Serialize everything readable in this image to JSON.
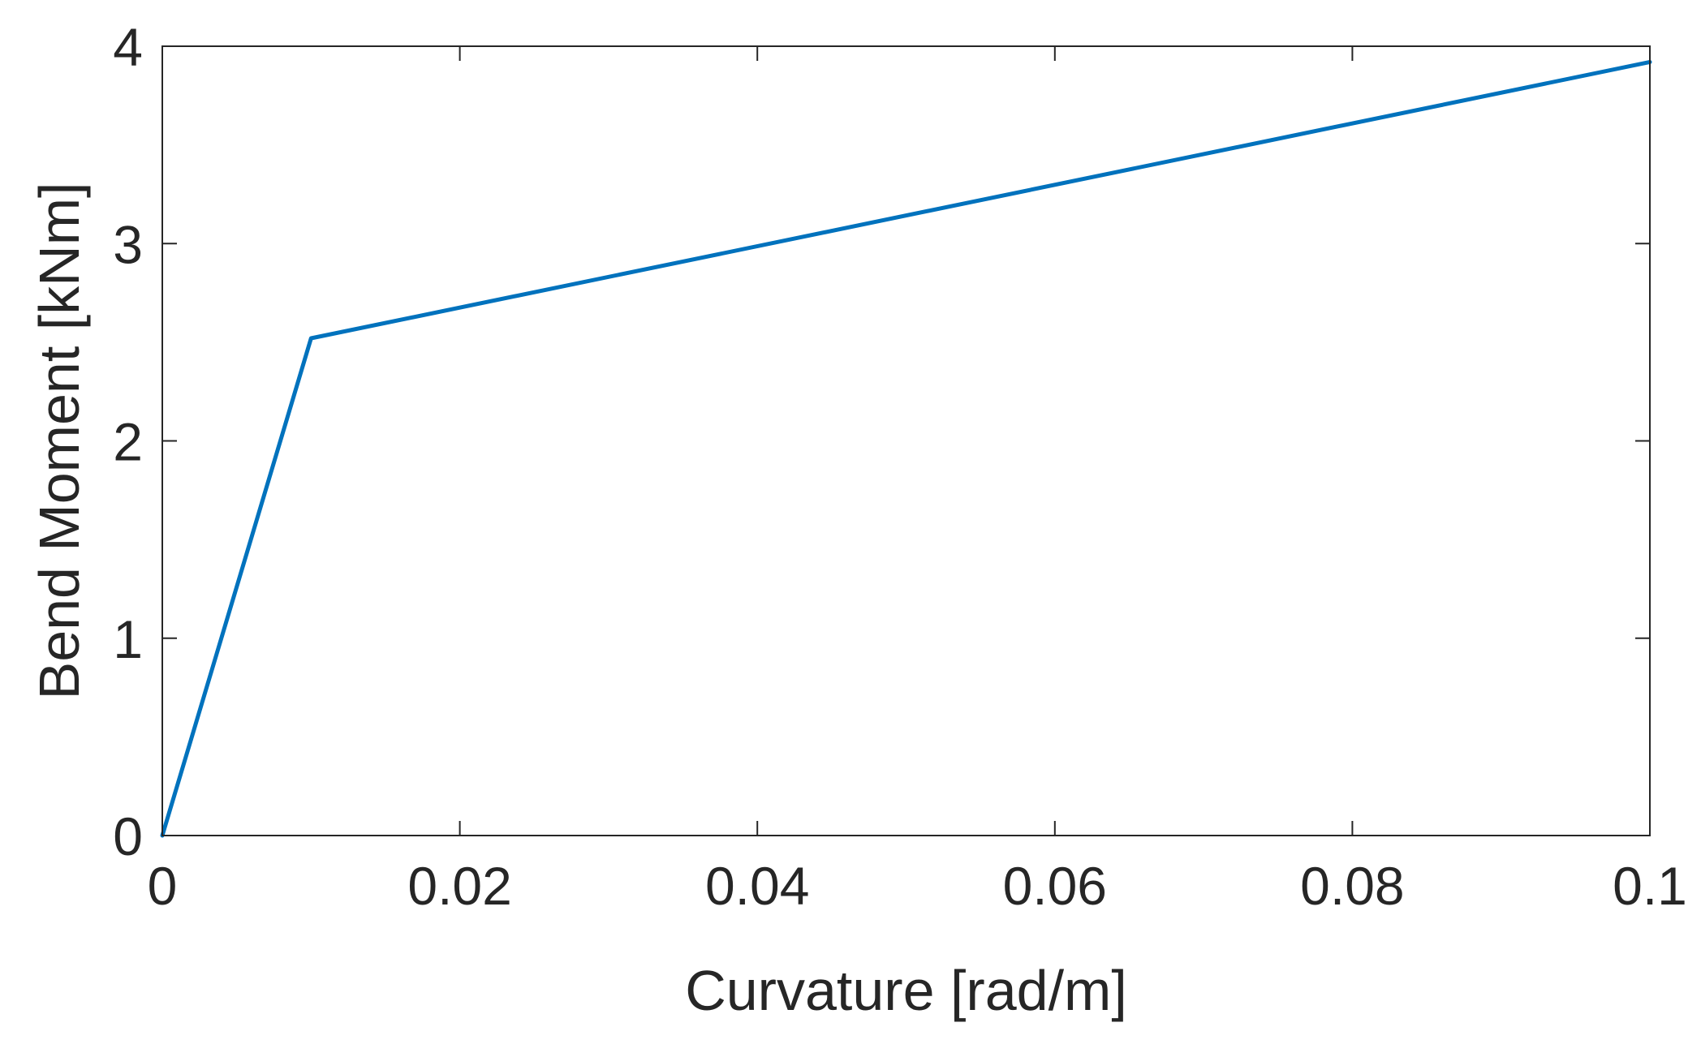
{
  "chart_data": {
    "type": "line",
    "title": "",
    "xlabel": "Curvature [rad/m]",
    "ylabel": "Bend Moment [kNm]",
    "xlim": [
      0,
      0.1
    ],
    "ylim": [
      0,
      4
    ],
    "xticks": [
      0,
      0.02,
      0.04,
      0.06,
      0.08,
      0.1
    ],
    "xtick_labels": [
      "0",
      "0.02",
      "0.04",
      "0.06",
      "0.08",
      "0.1"
    ],
    "yticks": [
      0,
      1,
      2,
      3,
      4
    ],
    "ytick_labels": [
      "0",
      "1",
      "2",
      "3",
      "4"
    ],
    "grid": false,
    "legend": "none",
    "series": [
      {
        "color": "#0072bd",
        "x": [
          0,
          0.01,
          0.1
        ],
        "y": [
          0,
          2.52,
          3.92
        ]
      }
    ]
  }
}
